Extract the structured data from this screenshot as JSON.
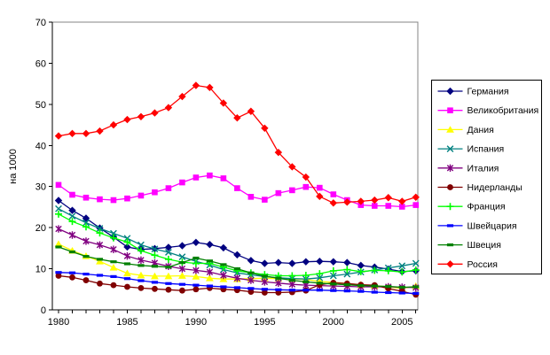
{
  "chart_data": {
    "type": "line",
    "title": "",
    "ylabel": "на 1000",
    "xlabel": "",
    "ylim": [
      0,
      70
    ],
    "yticks": [
      0,
      10,
      20,
      30,
      40,
      50,
      60,
      70
    ],
    "xticks": [
      1980,
      1985,
      1990,
      1995,
      2000,
      2005
    ],
    "x_range": [
      1980,
      2006
    ],
    "grid": false,
    "legend_position": "right",
    "years": [
      1980,
      1981,
      1982,
      1983,
      1984,
      1985,
      1986,
      1987,
      1988,
      1989,
      1990,
      1991,
      1992,
      1993,
      1994,
      1995,
      1996,
      1997,
      1998,
      1999,
      2000,
      2001,
      2002,
      2003,
      2004,
      2005,
      2006
    ],
    "series": [
      {
        "name": "Германия",
        "color": "#000080",
        "marker": "diamond",
        "values": [
          26.6,
          24.2,
          22.3,
          19.9,
          17.7,
          15.3,
          14.7,
          14.9,
          15.2,
          15.6,
          16.4,
          15.9,
          15.1,
          13.4,
          12.0,
          11.3,
          11.5,
          11.3,
          11.7,
          11.8,
          11.7,
          11.5,
          10.8,
          10.4,
          9.9,
          9.3,
          9.5
        ]
      },
      {
        "name": "Великобритания",
        "color": "#FF00FF",
        "marker": "square",
        "values": [
          30.4,
          28.0,
          27.3,
          26.9,
          26.7,
          27.1,
          27.8,
          28.6,
          29.6,
          31.0,
          32.2,
          32.7,
          32.0,
          29.6,
          27.5,
          26.8,
          28.4,
          29.1,
          29.9,
          29.7,
          28.1,
          26.7,
          25.5,
          25.3,
          25.3,
          25.1,
          25.5
        ]
      },
      {
        "name": "Дания",
        "color": "#FFFF00",
        "marker": "triangle",
        "values": [
          16.0,
          14.4,
          13.1,
          11.8,
          10.3,
          8.9,
          8.4,
          8.2,
          8.2,
          8.3,
          8.1,
          7.7,
          7.5,
          7.5,
          7.6,
          7.7,
          7.6,
          7.5,
          7.4,
          6.9,
          6.7,
          6.4,
          6.1,
          5.9,
          5.6,
          5.2,
          5.8
        ]
      },
      {
        "name": "Испания",
        "color": "#008080",
        "marker": "x",
        "values": [
          24.6,
          22.8,
          21.2,
          19.8,
          18.6,
          17.4,
          15.8,
          14.8,
          14.0,
          12.9,
          11.8,
          10.9,
          9.8,
          9.0,
          8.5,
          8.1,
          7.8,
          7.6,
          7.5,
          7.8,
          8.3,
          8.7,
          9.2,
          9.7,
          10.2,
          10.7,
          11.3
        ]
      },
      {
        "name": "Италия",
        "color": "#800080",
        "marker": "asterisk",
        "values": [
          19.7,
          18.2,
          16.7,
          15.8,
          14.7,
          13.1,
          12.1,
          11.4,
          10.6,
          10.0,
          9.6,
          9.2,
          8.4,
          7.7,
          7.2,
          6.8,
          6.5,
          6.2,
          6.0,
          5.9,
          5.8,
          5.7,
          5.6,
          5.6,
          5.6,
          5.5,
          5.4
        ]
      },
      {
        "name": "Нидерланды",
        "color": "#800000",
        "marker": "circle",
        "values": [
          8.3,
          7.9,
          7.2,
          6.4,
          6.0,
          5.6,
          5.3,
          5.1,
          4.9,
          4.7,
          5.0,
          5.3,
          5.0,
          4.8,
          4.4,
          4.2,
          4.2,
          4.3,
          4.7,
          6.1,
          6.6,
          6.4,
          6.1,
          6.0,
          5.2,
          4.5,
          3.7
        ]
      },
      {
        "name": "Франция",
        "color": "#00FF00",
        "marker": "plus",
        "values": [
          23.3,
          21.5,
          20.2,
          18.7,
          17.5,
          16.5,
          14.4,
          13.3,
          12.3,
          11.6,
          11.3,
          11.3,
          10.4,
          9.5,
          9.0,
          8.6,
          8.3,
          8.3,
          8.4,
          8.8,
          9.5,
          9.8,
          9.3,
          9.6,
          9.5,
          9.2,
          9.7
        ]
      },
      {
        "name": "Швейцария",
        "color": "#0000FF",
        "marker": "dash",
        "values": [
          9.1,
          9.0,
          8.7,
          8.4,
          8.1,
          7.6,
          7.1,
          6.7,
          6.4,
          6.2,
          6.0,
          5.8,
          5.6,
          5.4,
          5.2,
          5.0,
          4.9,
          4.8,
          4.8,
          4.8,
          4.7,
          4.6,
          4.5,
          4.3,
          4.2,
          4.1,
          4.0
        ]
      },
      {
        "name": "Швеция",
        "color": "#008000",
        "marker": "dash",
        "values": [
          15.3,
          14.1,
          13.0,
          12.3,
          11.7,
          11.2,
          10.8,
          10.6,
          10.4,
          11.5,
          12.6,
          11.9,
          11.0,
          10.0,
          9.0,
          8.2,
          7.7,
          7.2,
          6.8,
          6.5,
          6.3,
          6.1,
          5.9,
          5.8,
          5.7,
          5.5,
          5.6
        ]
      },
      {
        "name": "Россия",
        "color": "#FF0000",
        "marker": "diamond",
        "values": [
          42.3,
          42.9,
          42.9,
          43.5,
          45.0,
          46.3,
          47.0,
          47.9,
          49.2,
          51.9,
          54.6,
          54.1,
          50.3,
          46.7,
          48.3,
          44.2,
          38.3,
          34.8,
          32.3,
          27.6,
          26.0,
          26.2,
          26.4,
          26.7,
          27.3,
          26.4,
          27.4
        ]
      }
    ]
  }
}
